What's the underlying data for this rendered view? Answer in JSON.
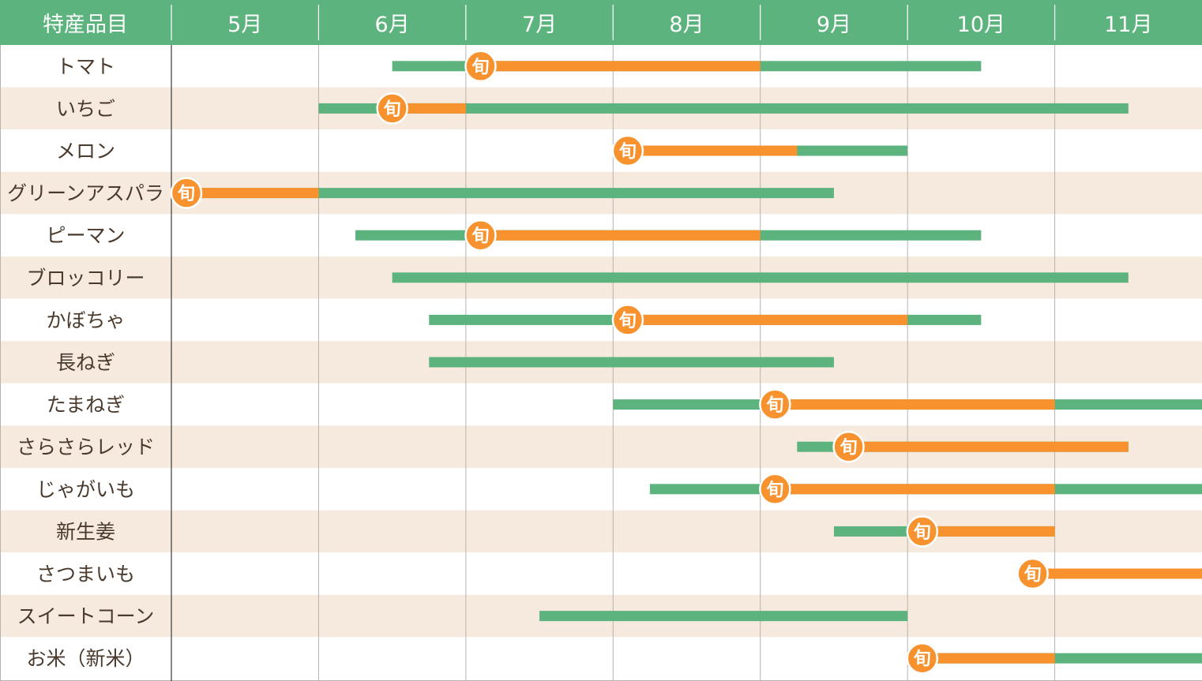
{
  "chart_data": {
    "type": "gantt",
    "header_label": "特産品目",
    "months": [
      "5月",
      "6月",
      "7月",
      "8月",
      "9月",
      "10月",
      "11月"
    ],
    "peak_badge": "旬",
    "colors": {
      "header": "#5db37e",
      "available": "#5db37e",
      "peak": "#f7922f",
      "row_alt": "#f6eadf",
      "grid": "#b9b2aa",
      "label_text": "#4a3a2c"
    },
    "items": [
      {
        "name": "トマト",
        "available": [
          [
            6.5,
            10.5
          ]
        ],
        "peak": [
          7.1,
          9.0
        ]
      },
      {
        "name": "いちご",
        "available": [
          [
            6.0,
            11.5
          ]
        ],
        "peak": [
          6.5,
          7.0
        ]
      },
      {
        "name": "メロン",
        "available": [
          [
            8.1,
            10.0
          ]
        ],
        "peak": [
          8.1,
          9.25
        ]
      },
      {
        "name": "グリーンアスパラ",
        "available": [
          [
            5.0,
            9.5
          ]
        ],
        "peak": [
          5.1,
          6.0
        ]
      },
      {
        "name": "ピーマン",
        "available": [
          [
            6.25,
            10.5
          ]
        ],
        "peak": [
          7.1,
          9.0
        ]
      },
      {
        "name": "ブロッコリー",
        "available": [
          [
            6.5,
            11.5
          ]
        ],
        "peak": null
      },
      {
        "name": "かぼちゃ",
        "available": [
          [
            6.75,
            10.5
          ]
        ],
        "peak": [
          8.1,
          10.0
        ]
      },
      {
        "name": "長ねぎ",
        "available": [
          [
            6.75,
            9.5
          ]
        ],
        "peak": null
      },
      {
        "name": "たまねぎ",
        "available": [
          [
            8.0,
            12.0
          ]
        ],
        "peak": [
          9.1,
          11.0
        ]
      },
      {
        "name": "さらさらレッド",
        "available": [
          [
            9.25,
            11.5
          ]
        ],
        "peak": [
          9.6,
          11.5
        ]
      },
      {
        "name": "じゃがいも",
        "available": [
          [
            8.25,
            12.0
          ]
        ],
        "peak": [
          9.1,
          11.0
        ]
      },
      {
        "name": "新生姜",
        "available": [
          [
            9.5,
            11.0
          ]
        ],
        "peak": [
          10.1,
          11.0
        ]
      },
      {
        "name": "さつまいも",
        "available": [],
        "peak": [
          10.85,
          12.0
        ]
      },
      {
        "name": "スイートコーン",
        "available": [
          [
            7.5,
            10.0
          ]
        ],
        "peak": null
      },
      {
        "name": "お米（新米）",
        "available": [
          [
            10.0,
            12.0
          ]
        ],
        "peak": [
          10.1,
          11.0
        ]
      }
    ]
  }
}
